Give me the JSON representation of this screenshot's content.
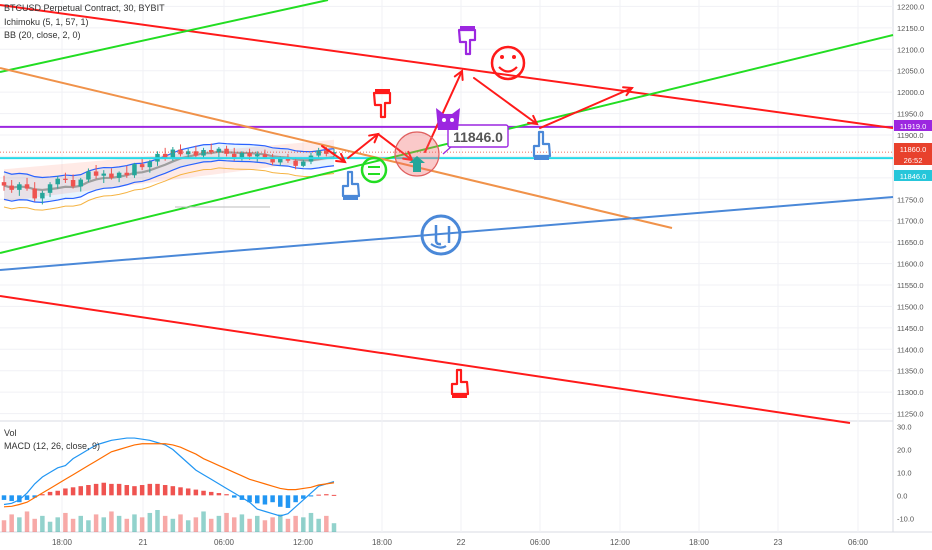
{
  "legend": {
    "symbol": "BTCUSD Perpetual Contract, 30, BYBIT",
    "ichimoku": "Ichimoku (5, 1, 57, 1)",
    "bb": "BB (20, close, 2, 0)",
    "vol": "Vol",
    "macd": "MACD (12, 26, close, 9)"
  },
  "price_axis": {
    "ticks": [
      "12200.0",
      "12150.0",
      "12100.0",
      "12050.0",
      "12000.0",
      "11950.0",
      "11900.0",
      "11850.0",
      "11800.0",
      "11750.0",
      "11700.0",
      "11650.0",
      "11600.0",
      "11550.0",
      "11500.0",
      "11450.0",
      "11400.0",
      "11350.0",
      "11300.0",
      "11250.0"
    ],
    "labels": [
      {
        "text": "11919.0",
        "color": "#9c27e0"
      },
      {
        "text": "11860.0",
        "color": "#e8412c"
      },
      {
        "text": "26:52",
        "color": "#e8412c"
      },
      {
        "text": "11846.0",
        "color": "#26c6da"
      }
    ]
  },
  "macd_axis": {
    "ticks": [
      "30.0",
      "20.0",
      "10.0",
      "0.0",
      "-10.0"
    ]
  },
  "time_axis": {
    "ticks": [
      "18:00",
      "21",
      "06:00",
      "12:00",
      "18:00",
      "22",
      "06:00",
      "12:00",
      "18:00",
      "23",
      "06:00"
    ]
  },
  "annotations": {
    "callout": "11846.0"
  },
  "colors": {
    "red_line": "#ff1a1a",
    "green_line": "#22dd22",
    "orange_line": "#f0924a",
    "blue_line": "#4a88d8",
    "purple_line": "#9c27e0",
    "cyan_line": "#29d9e8",
    "bull_candle": "#26a69a",
    "bear_candle": "#ef5350"
  },
  "icons": [
    "pointing-hand-icon",
    "smiley-icon",
    "neutral-face-icon",
    "confused-face-icon",
    "cat-face-icon",
    "right-arrow-icon"
  ],
  "chart_data": {
    "type": "candlestick",
    "x_range": [
      "20 16:00",
      "23 08:00"
    ],
    "y_range": [
      11235,
      12215
    ],
    "candles": [
      {
        "o": 11790,
        "h": 11805,
        "l": 11770,
        "c": 11782
      },
      {
        "o": 11782,
        "h": 11795,
        "l": 11765,
        "c": 11772
      },
      {
        "o": 11772,
        "h": 11790,
        "l": 11758,
        "c": 11785
      },
      {
        "o": 11785,
        "h": 11800,
        "l": 11770,
        "c": 11775
      },
      {
        "o": 11775,
        "h": 11790,
        "l": 11745,
        "c": 11752
      },
      {
        "o": 11752,
        "h": 11770,
        "l": 11738,
        "c": 11765
      },
      {
        "o": 11765,
        "h": 11790,
        "l": 11755,
        "c": 11785
      },
      {
        "o": 11785,
        "h": 11805,
        "l": 11775,
        "c": 11798
      },
      {
        "o": 11798,
        "h": 11812,
        "l": 11788,
        "c": 11795
      },
      {
        "o": 11795,
        "h": 11808,
        "l": 11775,
        "c": 11780
      },
      {
        "o": 11780,
        "h": 11800,
        "l": 11768,
        "c": 11796
      },
      {
        "o": 11796,
        "h": 11822,
        "l": 11790,
        "c": 11815
      },
      {
        "o": 11815,
        "h": 11830,
        "l": 11798,
        "c": 11805
      },
      {
        "o": 11805,
        "h": 11818,
        "l": 11788,
        "c": 11810
      },
      {
        "o": 11810,
        "h": 11822,
        "l": 11796,
        "c": 11800
      },
      {
        "o": 11800,
        "h": 11815,
        "l": 11790,
        "c": 11812
      },
      {
        "o": 11812,
        "h": 11828,
        "l": 11800,
        "c": 11806
      },
      {
        "o": 11806,
        "h": 11835,
        "l": 11800,
        "c": 11832
      },
      {
        "o": 11832,
        "h": 11848,
        "l": 11818,
        "c": 11825
      },
      {
        "o": 11825,
        "h": 11842,
        "l": 11812,
        "c": 11838
      },
      {
        "o": 11838,
        "h": 11862,
        "l": 11828,
        "c": 11856
      },
      {
        "o": 11856,
        "h": 11870,
        "l": 11840,
        "c": 11845
      },
      {
        "o": 11845,
        "h": 11872,
        "l": 11840,
        "c": 11866
      },
      {
        "o": 11866,
        "h": 11878,
        "l": 11850,
        "c": 11855
      },
      {
        "o": 11855,
        "h": 11868,
        "l": 11845,
        "c": 11862
      },
      {
        "o": 11862,
        "h": 11875,
        "l": 11848,
        "c": 11852
      },
      {
        "o": 11852,
        "h": 11870,
        "l": 11845,
        "c": 11865
      },
      {
        "o": 11865,
        "h": 11880,
        "l": 11855,
        "c": 11860
      },
      {
        "o": 11860,
        "h": 11872,
        "l": 11848,
        "c": 11868
      },
      {
        "o": 11868,
        "h": 11875,
        "l": 11850,
        "c": 11856
      },
      {
        "o": 11856,
        "h": 11870,
        "l": 11840,
        "c": 11848
      },
      {
        "o": 11848,
        "h": 11862,
        "l": 11840,
        "c": 11858
      },
      {
        "o": 11858,
        "h": 11868,
        "l": 11842,
        "c": 11850
      },
      {
        "o": 11850,
        "h": 11862,
        "l": 11838,
        "c": 11855
      },
      {
        "o": 11855,
        "h": 11866,
        "l": 11844,
        "c": 11848
      },
      {
        "o": 11848,
        "h": 11856,
        "l": 11830,
        "c": 11836
      },
      {
        "o": 11836,
        "h": 11850,
        "l": 11828,
        "c": 11845
      },
      {
        "o": 11845,
        "h": 11856,
        "l": 11835,
        "c": 11840
      },
      {
        "o": 11840,
        "h": 11848,
        "l": 11820,
        "c": 11828
      },
      {
        "o": 11828,
        "h": 11842,
        "l": 11825,
        "c": 11838
      },
      {
        "o": 11838,
        "h": 11858,
        "l": 11832,
        "c": 11852
      },
      {
        "o": 11852,
        "h": 11870,
        "l": 11845,
        "c": 11864
      },
      {
        "o": 11864,
        "h": 11872,
        "l": 11850,
        "c": 11856
      },
      {
        "o": 11856,
        "h": 11868,
        "l": 11848,
        "c": 11860
      }
    ],
    "volume": [
      8,
      12,
      10,
      14,
      9,
      11,
      7,
      10,
      13,
      9,
      11,
      8,
      12,
      10,
      14,
      11,
      9,
      12,
      10,
      13,
      15,
      11,
      9,
      12,
      8,
      10,
      14,
      9,
      11,
      13,
      10,
      12,
      9,
      11,
      8,
      10,
      12,
      9,
      11,
      10,
      13,
      9,
      11,
      6
    ],
    "macd_hist": [
      -2,
      -2.5,
      -3,
      -2,
      -1,
      0.5,
      1.5,
      2,
      3,
      3.5,
      4,
      4.5,
      5,
      5.5,
      5,
      5,
      4.5,
      4,
      4.5,
      5,
      5,
      4.5,
      4,
      3.5,
      3,
      2.5,
      2,
      1.5,
      1,
      0.5,
      -1,
      -2,
      -3,
      -3.5,
      -4,
      -3,
      -5,
      -5.5,
      -3,
      -1.5,
      -0.5,
      0.3,
      0.5,
      0.2
    ],
    "macd_line": [
      -4,
      -3.5,
      -2,
      1,
      5,
      8,
      10,
      12,
      13,
      16,
      18,
      20,
      22,
      23,
      24,
      24.5,
      25,
      25,
      24.5,
      24,
      23,
      22,
      20,
      17,
      14,
      11,
      9,
      7,
      5,
      3,
      1,
      -1,
      -3,
      -6,
      -7,
      -8,
      -9,
      -8,
      -5,
      -2,
      1,
      4,
      5,
      6
    ],
    "signal_line": [
      -5,
      -4.8,
      -4,
      -3,
      -1,
      1,
      3,
      5,
      7,
      9,
      11,
      13,
      15,
      17,
      19,
      20,
      21,
      22,
      22.5,
      22.5,
      22.5,
      22.5,
      22,
      21,
      19.5,
      18,
      16,
      14.5,
      13,
      11.5,
      10,
      8.5,
      7,
      6,
      5,
      4,
      3,
      2.5,
      2.5,
      3,
      3.5,
      4.5,
      5,
      5.5
    ],
    "macd_range": [
      -16,
      32
    ],
    "horizontal_lines": [
      {
        "price": 11919,
        "color": "#9c27e0"
      },
      {
        "price": 11860,
        "color": "#e8412c"
      },
      {
        "price": 11846,
        "color": "#29d9e8"
      }
    ]
  }
}
